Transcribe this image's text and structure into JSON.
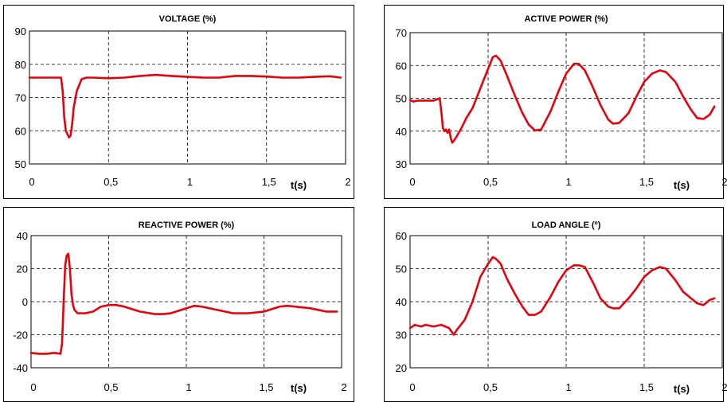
{
  "chart_data": [
    {
      "type": "line",
      "title": "VOLTAGE (%)",
      "xlabel": "t(s)",
      "xlim": [
        0,
        2
      ],
      "ylim": [
        50,
        90
      ],
      "xticks": [
        "0",
        "0,5",
        "1",
        "1,5",
        "2"
      ],
      "yticks": [
        "50",
        "60",
        "70",
        "80",
        "90"
      ],
      "grid": true,
      "color": "#e8000b",
      "x": [
        0,
        0.2,
        0.21,
        0.22,
        0.23,
        0.24,
        0.25,
        0.26,
        0.27,
        0.28,
        0.3,
        0.33,
        0.36,
        0.4,
        0.5,
        0.6,
        0.7,
        0.8,
        0.9,
        1.0,
        1.1,
        1.2,
        1.3,
        1.4,
        1.5,
        1.6,
        1.7,
        1.8,
        1.9,
        1.97
      ],
      "y": [
        76,
        76,
        72,
        64,
        60,
        59,
        58,
        58.5,
        62,
        67,
        72,
        75.5,
        76,
        76,
        75.8,
        76,
        76.5,
        76.8,
        76.5,
        76.2,
        76,
        76,
        76.5,
        76.5,
        76.3,
        76,
        76,
        76.2,
        76.4,
        76
      ]
    },
    {
      "type": "line",
      "title": "ACTIVE POWER (%)",
      "xlabel": "t(s)",
      "xlim": [
        0,
        2
      ],
      "ylim": [
        30,
        70
      ],
      "xticks": [
        "0",
        "0,5",
        "1",
        "1,5",
        "2"
      ],
      "yticks": [
        "30",
        "40",
        "50",
        "60",
        "70"
      ],
      "grid": true,
      "color": "#e8000b",
      "x": [
        0,
        0.02,
        0.05,
        0.1,
        0.15,
        0.19,
        0.2,
        0.21,
        0.22,
        0.23,
        0.24,
        0.25,
        0.26,
        0.27,
        0.28,
        0.3,
        0.33,
        0.36,
        0.4,
        0.45,
        0.5,
        0.53,
        0.55,
        0.58,
        0.62,
        0.67,
        0.72,
        0.76,
        0.8,
        0.84,
        0.9,
        0.95,
        1.0,
        1.05,
        1.08,
        1.12,
        1.17,
        1.22,
        1.27,
        1.3,
        1.34,
        1.4,
        1.45,
        1.5,
        1.55,
        1.6,
        1.64,
        1.7,
        1.75,
        1.8,
        1.84,
        1.88,
        1.92,
        1.95
      ],
      "y": [
        49.5,
        49,
        49.3,
        49.3,
        49.3,
        50,
        46,
        41,
        40,
        40.5,
        39.5,
        40.5,
        38,
        36.5,
        37,
        38.5,
        41,
        44,
        47,
        53,
        59,
        62.5,
        63,
        61.5,
        57,
        51,
        45.5,
        42,
        40.2,
        40.5,
        46,
        52,
        57.5,
        60.5,
        60.5,
        58.5,
        53.5,
        48,
        43.5,
        42.3,
        42.5,
        45.5,
        50.5,
        55,
        57.5,
        58.5,
        58,
        55,
        50.5,
        46.5,
        44,
        43.7,
        45,
        47.5
      ]
    },
    {
      "type": "line",
      "title": "REACTIVE POWER (%)",
      "xlabel": "t(s)",
      "xlim": [
        0,
        2
      ],
      "ylim": [
        -40,
        40
      ],
      "xticks": [
        "0",
        "0,5",
        "1",
        "1,5",
        "2"
      ],
      "yticks": [
        "-40",
        "-20",
        "0",
        "20",
        "40"
      ],
      "grid": true,
      "color": "#e8000b",
      "x": [
        0,
        0.05,
        0.1,
        0.15,
        0.19,
        0.2,
        0.21,
        0.22,
        0.23,
        0.24,
        0.25,
        0.26,
        0.27,
        0.28,
        0.3,
        0.35,
        0.4,
        0.45,
        0.5,
        0.55,
        0.6,
        0.7,
        0.8,
        0.85,
        0.9,
        1.0,
        1.05,
        1.1,
        1.2,
        1.3,
        1.4,
        1.5,
        1.6,
        1.65,
        1.7,
        1.8,
        1.9,
        1.97
      ],
      "y": [
        -31,
        -31.5,
        -31.5,
        -31,
        -31.5,
        -25,
        0,
        22,
        28,
        29,
        20,
        5,
        -2,
        -5,
        -7,
        -7,
        -6,
        -3,
        -2,
        -2,
        -3,
        -6,
        -7.5,
        -7.5,
        -7,
        -4,
        -2.5,
        -3,
        -5,
        -7,
        -7,
        -6,
        -3,
        -2.5,
        -3,
        -4,
        -6,
        -6
      ]
    },
    {
      "type": "line",
      "title": "LOAD ANGLE (º)",
      "xlabel": "t(s)",
      "xlim": [
        0,
        2
      ],
      "ylim": [
        20,
        60
      ],
      "xticks": [
        "0",
        "0,5",
        "1",
        "1,5",
        "2"
      ],
      "yticks": [
        "20",
        "30",
        "40",
        "50",
        "60"
      ],
      "grid": true,
      "color": "#e8000b",
      "x": [
        0,
        0.03,
        0.07,
        0.1,
        0.15,
        0.2,
        0.25,
        0.28,
        0.3,
        0.35,
        0.4,
        0.45,
        0.5,
        0.53,
        0.55,
        0.58,
        0.62,
        0.67,
        0.72,
        0.76,
        0.8,
        0.84,
        0.9,
        0.95,
        1.0,
        1.05,
        1.08,
        1.12,
        1.17,
        1.22,
        1.27,
        1.3,
        1.34,
        1.4,
        1.45,
        1.5,
        1.55,
        1.6,
        1.64,
        1.7,
        1.75,
        1.8,
        1.84,
        1.88,
        1.92,
        1.95
      ],
      "y": [
        32,
        33,
        32.5,
        33,
        32.5,
        33,
        32,
        30,
        31.5,
        34.5,
        40,
        47.5,
        51.5,
        53.5,
        53,
        51.5,
        47,
        42.5,
        38.5,
        36,
        36,
        37,
        41.5,
        46,
        49.5,
        51,
        51,
        50.5,
        46,
        41,
        38.5,
        38,
        38,
        41,
        44,
        47.5,
        49.5,
        50.5,
        50,
        46.5,
        43,
        41,
        39.5,
        39,
        40.5,
        41
      ]
    }
  ]
}
